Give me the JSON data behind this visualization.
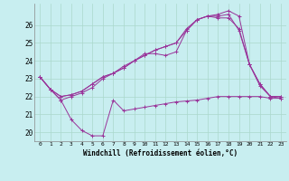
{
  "xlabel": "Windchill (Refroidissement éolien,°C)",
  "bg_color": "#c8eef0",
  "grid_color": "#aad8cc",
  "line_color": "#993399",
  "ylim": [
    19.5,
    27.2
  ],
  "xlim": [
    -0.5,
    23.5
  ],
  "yticks": [
    20,
    21,
    22,
    23,
    24,
    25,
    26
  ],
  "xticks": [
    0,
    1,
    2,
    3,
    4,
    5,
    6,
    7,
    8,
    9,
    10,
    11,
    12,
    13,
    14,
    15,
    16,
    17,
    18,
    19,
    20,
    21,
    22,
    23
  ],
  "s1_x": [
    0,
    1,
    2,
    3,
    4,
    5,
    6,
    7,
    8,
    9,
    10,
    11,
    12,
    13,
    14,
    15,
    16,
    17,
    18,
    19,
    20,
    21,
    22,
    23
  ],
  "s1_y": [
    23.1,
    22.4,
    21.8,
    20.7,
    20.1,
    19.8,
    19.8,
    21.8,
    21.2,
    21.3,
    21.4,
    21.5,
    21.6,
    21.7,
    21.75,
    21.8,
    21.9,
    22.0,
    22.0,
    22.0,
    22.0,
    22.0,
    21.9,
    21.9
  ],
  "s2_x": [
    0,
    1,
    2,
    3,
    4,
    5,
    6,
    7,
    8,
    9,
    10,
    11,
    12,
    13,
    14,
    15,
    16,
    17,
    18,
    19,
    20,
    21,
    22,
    23
  ],
  "s2_y": [
    23.1,
    22.4,
    21.8,
    22.0,
    22.2,
    22.5,
    23.0,
    23.3,
    23.7,
    24.0,
    24.4,
    24.4,
    24.3,
    24.5,
    25.7,
    26.3,
    26.5,
    26.4,
    26.4,
    25.8,
    23.8,
    22.6,
    22.0,
    21.9
  ],
  "s3_x": [
    0,
    1,
    2,
    3,
    4,
    5,
    6,
    7,
    8,
    9,
    10,
    11,
    12,
    13,
    14,
    15,
    16,
    17,
    18,
    19,
    20,
    21,
    22,
    23
  ],
  "s3_y": [
    23.1,
    22.4,
    22.0,
    22.1,
    22.3,
    22.7,
    23.1,
    23.3,
    23.6,
    24.0,
    24.3,
    24.6,
    24.8,
    25.0,
    25.7,
    26.3,
    26.5,
    26.5,
    26.6,
    25.7,
    23.8,
    22.7,
    22.0,
    22.0
  ],
  "s4_x": [
    0,
    1,
    2,
    3,
    4,
    5,
    6,
    7,
    8,
    9,
    10,
    11,
    12,
    13,
    14,
    15,
    16,
    17,
    18,
    19,
    20,
    21,
    22,
    23
  ],
  "s4_y": [
    23.1,
    22.4,
    22.0,
    22.1,
    22.3,
    22.7,
    23.1,
    23.3,
    23.6,
    24.0,
    24.3,
    24.6,
    24.8,
    25.0,
    25.8,
    26.3,
    26.5,
    26.6,
    26.8,
    26.5,
    23.8,
    22.7,
    22.0,
    22.0
  ]
}
